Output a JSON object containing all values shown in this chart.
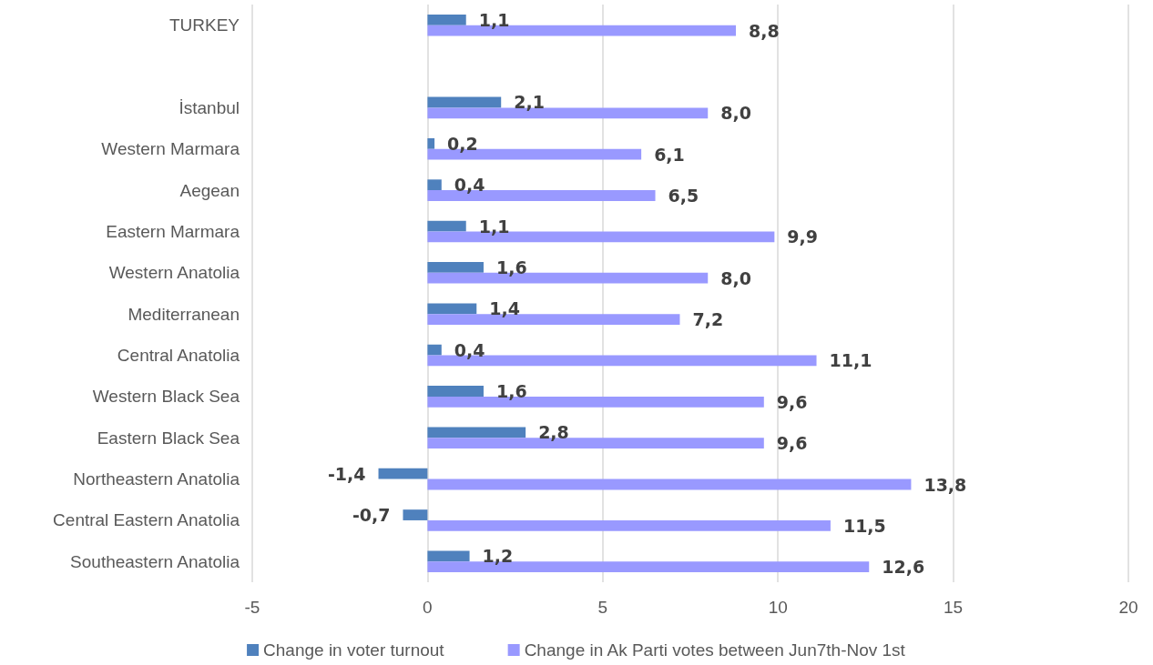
{
  "chart_data": {
    "type": "bar",
    "orientation": "horizontal",
    "categories": [
      "TURKEY",
      null,
      "İstanbul",
      "Western Marmara",
      "Aegean",
      "Eastern Marmara",
      "Western Anatolia",
      "Mediterranean",
      "Central Anatolia",
      "Western Black Sea",
      "Eastern Black Sea",
      "Northeastern Anatolia",
      "Central Eastern Anatolia",
      "Southeastern Anatolia"
    ],
    "series": [
      {
        "name": "Change in voter turnout",
        "color": "#4f81bd",
        "values": [
          1.1,
          null,
          2.1,
          0.2,
          0.4,
          1.1,
          1.6,
          1.4,
          0.4,
          1.6,
          2.8,
          -1.4,
          -0.7,
          1.2
        ],
        "value_labels": [
          "1,1",
          null,
          "2,1",
          "0,2",
          "0,4",
          "1,1",
          "1,6",
          "1,4",
          "0,4",
          "1,6",
          "2,8",
          "-1,4",
          "-0,7",
          "1,2"
        ]
      },
      {
        "name": "Change in Ak Parti votes between Jun7th-Nov 1st",
        "color": "#9999ff",
        "values": [
          8.8,
          null,
          8.0,
          6.1,
          6.5,
          9.9,
          8.0,
          7.2,
          11.1,
          9.6,
          9.6,
          13.8,
          11.5,
          12.6
        ],
        "value_labels": [
          "8,8",
          null,
          "8,0",
          "6,1",
          "6,5",
          "9,9",
          "8,0",
          "7,2",
          "11,1",
          "9,6",
          "9,6",
          "13,8",
          "11,5",
          "12,6"
        ]
      }
    ],
    "xlim": [
      -5,
      20
    ],
    "xticks": [
      -5,
      0,
      5,
      10,
      15,
      20
    ],
    "grid": "x",
    "legend": "bottom"
  }
}
